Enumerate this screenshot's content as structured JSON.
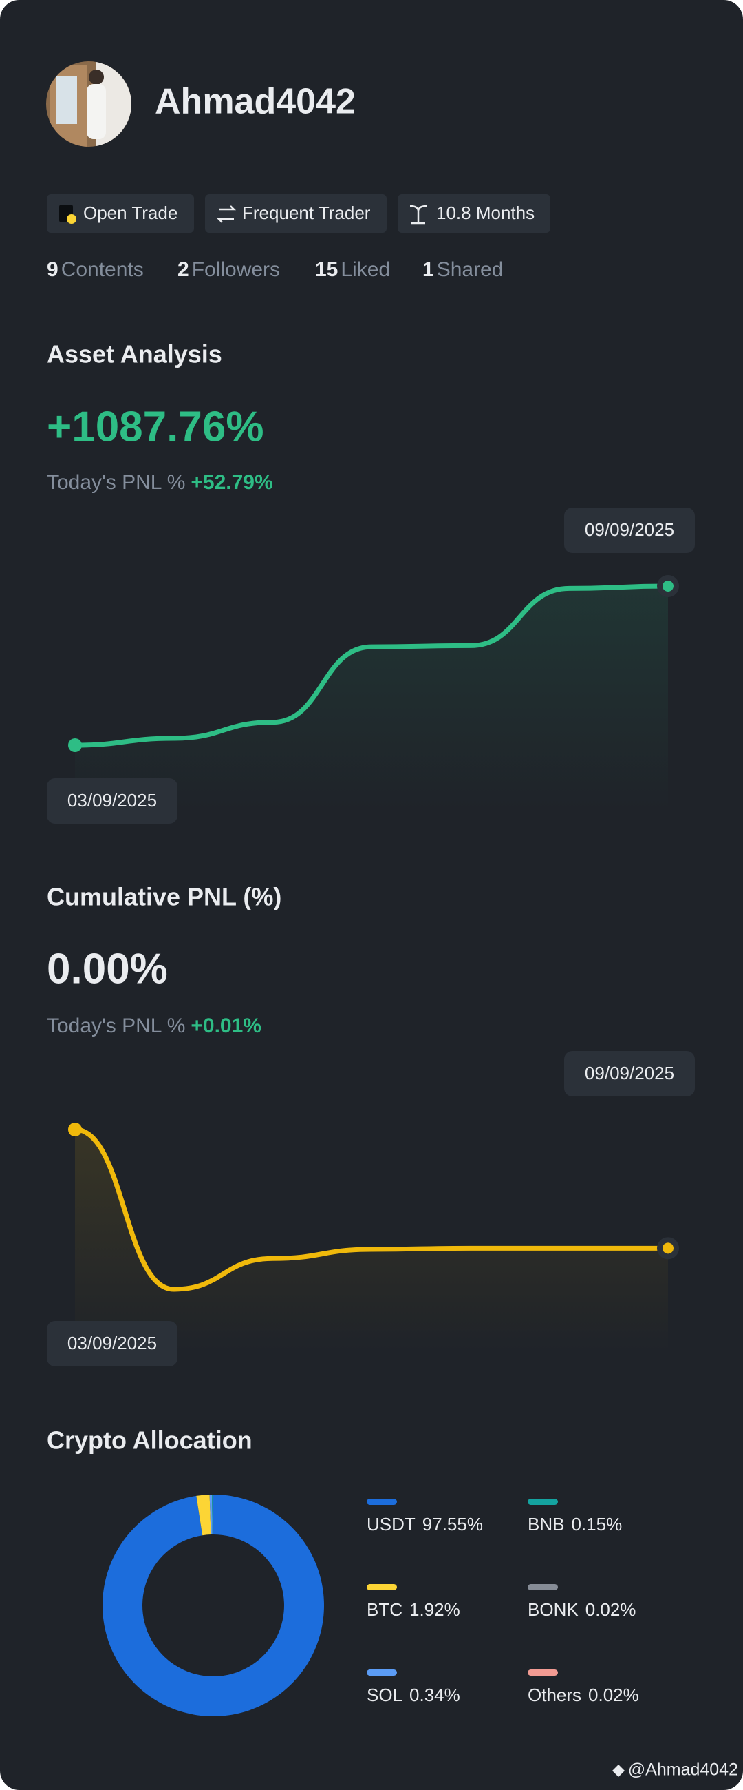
{
  "profile": {
    "username": "Ahmad4042",
    "tags": [
      "Open Trade",
      "Frequent Trader",
      "10.8 Months"
    ],
    "stats": [
      {
        "count": 9,
        "label": "Contents"
      },
      {
        "count": 2,
        "label": "Followers"
      },
      {
        "count": 15,
        "label": "Liked"
      },
      {
        "count": 1,
        "label": "Shared"
      }
    ]
  },
  "asset_analysis": {
    "title": "Asset Analysis",
    "total": "+1087.76%",
    "today_label": "Today's PNL %",
    "today_value": "+52.79%",
    "chart": {
      "type": "line",
      "x": [
        "03/09/2025",
        null,
        null,
        null,
        null,
        null,
        "09/09/2025"
      ],
      "series": [
        {
          "color": "#2ebd85",
          "values": [
            0,
            47,
            157,
            673,
            681,
            1072,
            1088
          ]
        }
      ]
    }
  },
  "cumulative_pnl": {
    "title": "Cumulative PNL (%)",
    "total": "0.00%",
    "today_label": "Today's PNL %",
    "today_value": "+0.01%",
    "chart": {
      "type": "line",
      "x": [
        "03/09/2025",
        null,
        null,
        null,
        null,
        null,
        "09/09/2025"
      ],
      "series": [
        {
          "color": "#f0b90b",
          "values": [
            1.04,
            -0.36,
            -0.09,
            -0.01,
            0,
            0,
            0
          ]
        }
      ]
    }
  },
  "crypto_allocation": {
    "title": "Crypto Allocation",
    "chart": {
      "type": "pie",
      "donut": true,
      "categories": [
        "USDT",
        "BTC",
        "SOL",
        "BNB",
        "BONK",
        "Others"
      ],
      "values": [
        97.55,
        1.92,
        0.34,
        0.15,
        0.02,
        0.02
      ],
      "value_labels": [
        "97.55%",
        "1.92%",
        "0.34%",
        "0.15%",
        "0.02%",
        "0.02%"
      ],
      "colors": [
        "#1c6ddc",
        "#fcd535",
        "#5b9cf5",
        "#14a3a0",
        "#868c96",
        "#f29b93"
      ]
    }
  },
  "watermark": "@Ahmad4042"
}
